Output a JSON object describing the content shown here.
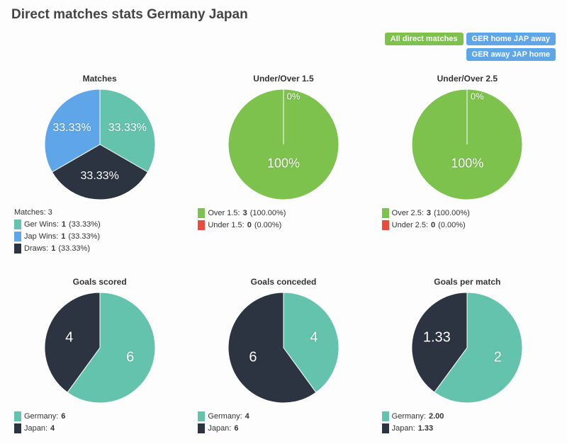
{
  "title": "Direct matches stats Germany Japan",
  "colors": {
    "teal": "#63c3ac",
    "blue": "#5fa6e8",
    "dark": "#2b3440",
    "green": "#7cc24c",
    "red": "#e74c3c",
    "filter_active": "#7cc24c",
    "filter_inactive": "#5fa6e8",
    "slice_border": "#ffffff"
  },
  "filters": [
    {
      "label": "All direct matches",
      "active": true
    },
    {
      "label": "GER home JAP away",
      "active": false
    },
    {
      "label": "GER away JAP home",
      "active": false
    }
  ],
  "charts": [
    {
      "title": "Matches",
      "size": 160,
      "legend_header": "Matches: 3",
      "slices": [
        {
          "color_key": "teal",
          "value": 33.3333,
          "label": "33.33%",
          "label_font": 16
        },
        {
          "color_key": "dark",
          "value": 33.3333,
          "label": "33.33%",
          "label_font": 16
        },
        {
          "color_key": "blue",
          "value": 33.3333,
          "label": "33.33%",
          "label_font": 16
        }
      ],
      "legend": [
        {
          "color_key": "teal",
          "label": "Ger Wins:",
          "value": "1",
          "pct": "(33.33%)"
        },
        {
          "color_key": "blue",
          "label": "Jap Wins:",
          "value": "1",
          "pct": "(33.33%)"
        },
        {
          "color_key": "dark",
          "label": "Draws:",
          "value": "1",
          "pct": "(33.33%)"
        }
      ]
    },
    {
      "title": "Under/Over 1.5",
      "size": 160,
      "slices": [
        {
          "color_key": "green",
          "value": 100,
          "label": "100%",
          "label_font": 18,
          "label_r": 0.35
        }
      ],
      "topline_label": "0%",
      "legend": [
        {
          "color_key": "green",
          "label": "Over 1.5:",
          "value": "3",
          "pct": "(100.00%)"
        },
        {
          "color_key": "red",
          "label": "Under 1.5:",
          "value": "0",
          "pct": "(0.00%)"
        }
      ]
    },
    {
      "title": "Under/Over 2.5",
      "size": 160,
      "slices": [
        {
          "color_key": "green",
          "value": 100,
          "label": "100%",
          "label_font": 18,
          "label_r": 0.35
        }
      ],
      "topline_label": "0%",
      "legend": [
        {
          "color_key": "green",
          "label": "Over 2.5:",
          "value": "3",
          "pct": "(100.00%)"
        },
        {
          "color_key": "red",
          "label": "Under 2.5:",
          "value": "0",
          "pct": "(0.00%)"
        }
      ]
    },
    {
      "title": "Goals scored",
      "size": 160,
      "slices": [
        {
          "color_key": "teal",
          "value": 60,
          "label": "6",
          "label_font": 20
        },
        {
          "color_key": "dark",
          "value": 40,
          "label": "4",
          "label_font": 20
        }
      ],
      "legend": [
        {
          "color_key": "teal",
          "label": "Germany:",
          "value": "6"
        },
        {
          "color_key": "dark",
          "label": "Japan:",
          "value": "4"
        }
      ]
    },
    {
      "title": "Goals conceded",
      "size": 160,
      "slices": [
        {
          "color_key": "teal",
          "value": 40,
          "label": "4",
          "label_font": 20
        },
        {
          "color_key": "dark",
          "value": 60,
          "label": "6",
          "label_font": 20
        }
      ],
      "legend": [
        {
          "color_key": "teal",
          "label": "Germany:",
          "value": "4"
        },
        {
          "color_key": "dark",
          "label": "Japan:",
          "value": "6"
        }
      ]
    },
    {
      "title": "Goals per match",
      "size": 160,
      "slices": [
        {
          "color_key": "teal",
          "value": 60.06,
          "label": "2",
          "label_font": 20
        },
        {
          "color_key": "dark",
          "value": 39.94,
          "label": "1.33",
          "label_font": 20
        }
      ],
      "legend": [
        {
          "color_key": "teal",
          "label": "Germany:",
          "value": "2.00"
        },
        {
          "color_key": "dark",
          "label": "Japan:",
          "value": "1.33"
        }
      ]
    }
  ]
}
